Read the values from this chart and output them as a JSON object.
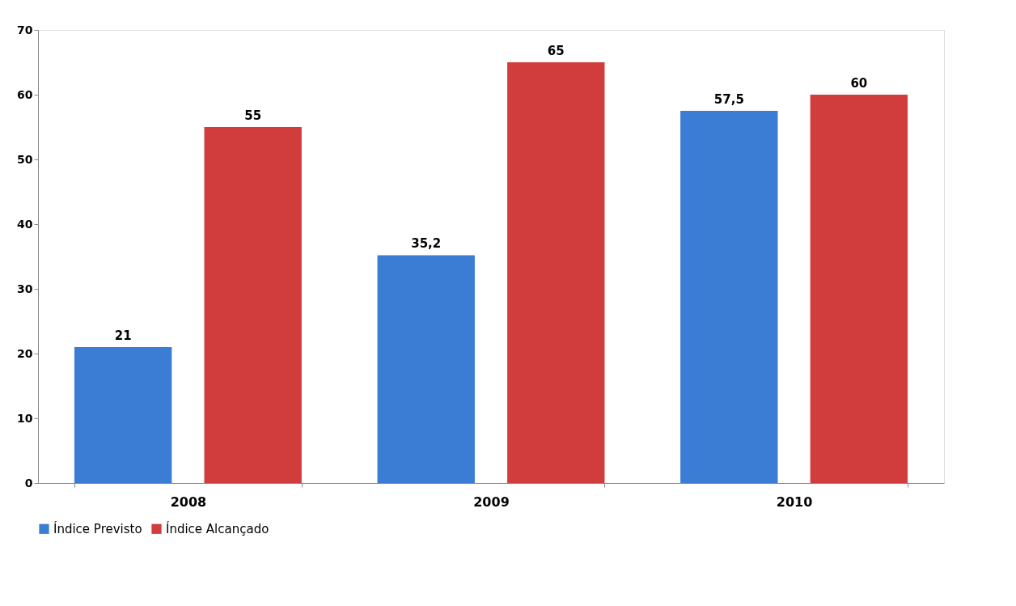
{
  "chart_data": {
    "type": "bar",
    "categories": [
      "2008",
      "2009",
      "2010"
    ],
    "series": [
      {
        "name": "Índice Previsto",
        "color": "#3b7dd4",
        "values": [
          21,
          35.2,
          57.5
        ],
        "value_labels": [
          "21",
          "35,2",
          "57,5"
        ]
      },
      {
        "name": "Índice Alcançado",
        "color": "#d13c3c",
        "values": [
          55,
          65,
          60
        ],
        "value_labels": [
          "55",
          "65",
          "60"
        ]
      }
    ],
    "ylim": [
      0,
      70
    ],
    "yticks": [
      0,
      10,
      20,
      30,
      40,
      50,
      60,
      70
    ],
    "grid": false,
    "legend": "bottom"
  }
}
